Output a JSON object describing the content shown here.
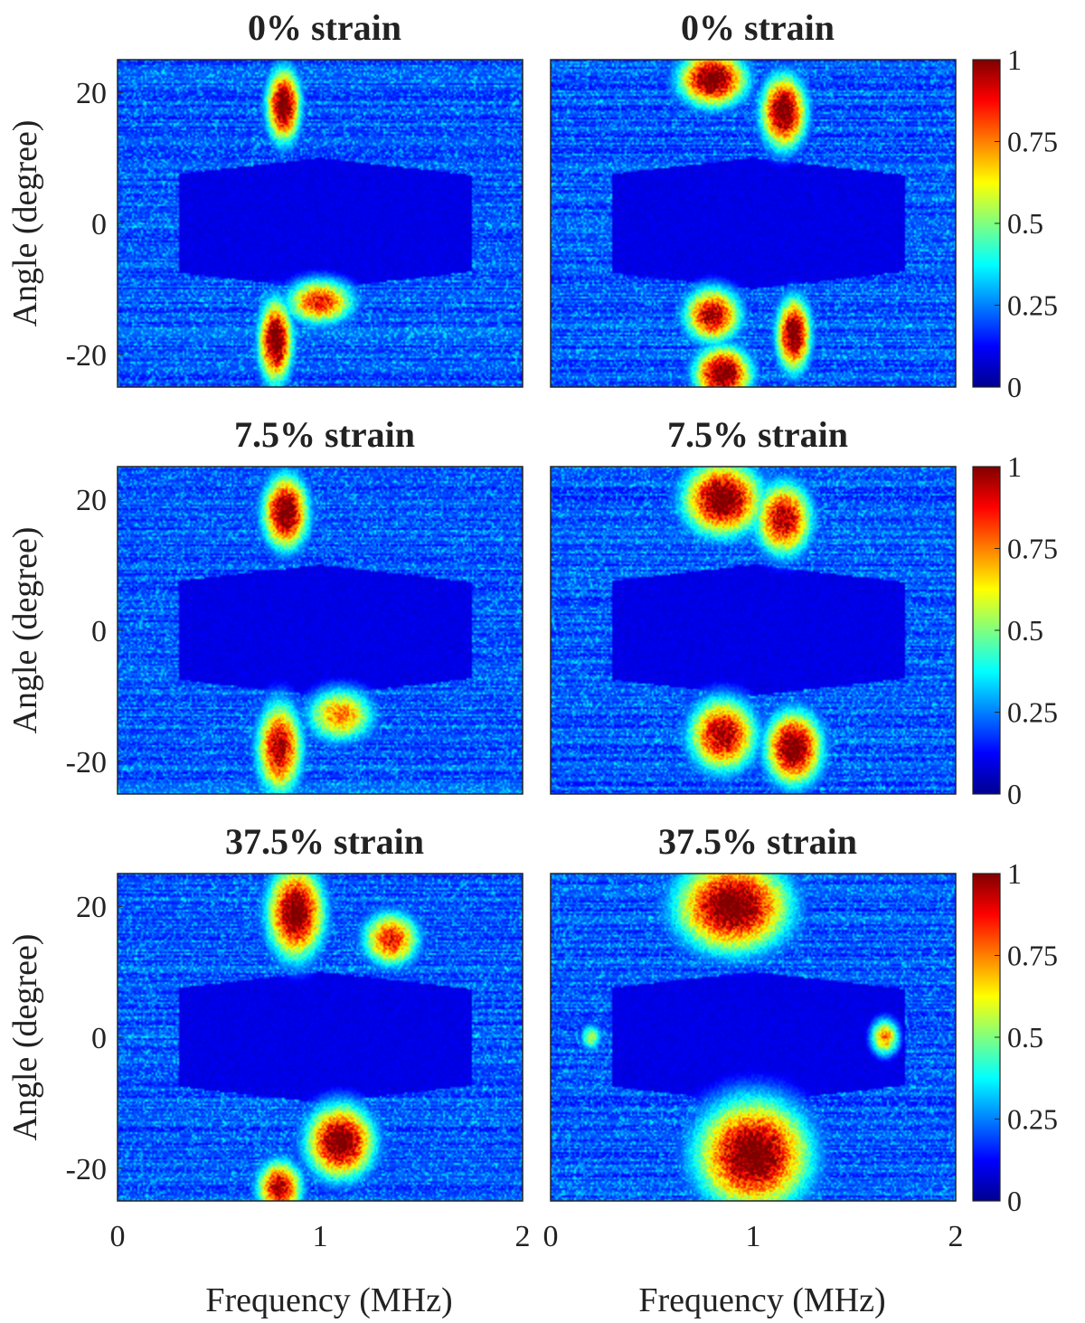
{
  "chart_data": {
    "type": "heatmap",
    "layout": "3 rows x 2 columns",
    "xlabel": "Frequency (MHz)",
    "ylabel": "Angle (degree)",
    "xlim": [
      0,
      2
    ],
    "ylim": [
      -25,
      25
    ],
    "xticks": [
      "0",
      "1",
      "2"
    ],
    "yticks": [
      "20",
      "0",
      "-20"
    ],
    "colorbar": {
      "range": [
        0,
        1
      ],
      "ticks": [
        "1",
        "0.75",
        "0.5",
        "0.25",
        "0"
      ],
      "colormap": "jet"
    },
    "panels": [
      {
        "title": "0% strain",
        "blobs": [
          {
            "f": 0.82,
            "a": 18,
            "sf": 0.06,
            "sa": 4,
            "amp": 1.0
          },
          {
            "f": 0.78,
            "a": -18,
            "sf": 0.06,
            "sa": 4.5,
            "amp": 1.0
          },
          {
            "f": 1.0,
            "a": -12,
            "sf": 0.12,
            "sa": 2.5,
            "amp": 0.8
          }
        ]
      },
      {
        "title": "0% strain",
        "blobs": [
          {
            "f": 0.8,
            "a": 22,
            "sf": 0.12,
            "sa": 3,
            "amp": 1.0
          },
          {
            "f": 1.15,
            "a": 17,
            "sf": 0.08,
            "sa": 4,
            "amp": 1.0
          },
          {
            "f": 0.8,
            "a": -14,
            "sf": 0.1,
            "sa": 3,
            "amp": 0.9
          },
          {
            "f": 0.85,
            "a": -23,
            "sf": 0.1,
            "sa": 3,
            "amp": 1.0
          },
          {
            "f": 1.2,
            "a": -17,
            "sf": 0.06,
            "sa": 4,
            "amp": 1.0
          }
        ]
      },
      {
        "title": "7.5% strain",
        "blobs": [
          {
            "f": 0.83,
            "a": 18,
            "sf": 0.08,
            "sa": 4,
            "amp": 1.0
          },
          {
            "f": 0.8,
            "a": -18,
            "sf": 0.08,
            "sa": 5,
            "amp": 0.9
          },
          {
            "f": 1.1,
            "a": -13,
            "sf": 0.12,
            "sa": 3,
            "amp": 0.7
          }
        ]
      },
      {
        "title": "7.5% strain",
        "blobs": [
          {
            "f": 0.85,
            "a": 20,
            "sf": 0.14,
            "sa": 4,
            "amp": 1.0
          },
          {
            "f": 1.15,
            "a": 17,
            "sf": 0.1,
            "sa": 4,
            "amp": 0.9
          },
          {
            "f": 1.2,
            "a": -18,
            "sf": 0.1,
            "sa": 4,
            "amp": 1.0
          },
          {
            "f": 0.85,
            "a": -16,
            "sf": 0.12,
            "sa": 4,
            "amp": 0.9
          }
        ]
      },
      {
        "title": "37.5% strain",
        "blobs": [
          {
            "f": 0.88,
            "a": 19,
            "sf": 0.1,
            "sa": 5,
            "amp": 1.0
          },
          {
            "f": 1.35,
            "a": 15,
            "sf": 0.1,
            "sa": 3,
            "amp": 0.8
          },
          {
            "f": 1.1,
            "a": -16,
            "sf": 0.12,
            "sa": 4,
            "amp": 1.0
          },
          {
            "f": 0.8,
            "a": -23,
            "sf": 0.08,
            "sa": 3,
            "amp": 0.9
          }
        ]
      },
      {
        "title": "37.5% strain",
        "blobs": [
          {
            "f": 0.9,
            "a": 20,
            "sf": 0.2,
            "sa": 5,
            "amp": 1.0
          },
          {
            "f": 1.0,
            "a": -18,
            "sf": 0.2,
            "sa": 6,
            "amp": 1.0
          },
          {
            "f": 1.65,
            "a": 0,
            "sf": 0.05,
            "sa": 2,
            "amp": 0.7
          },
          {
            "f": 0.2,
            "a": 0,
            "sf": 0.04,
            "sa": 1.5,
            "amp": 0.5
          }
        ]
      }
    ]
  }
}
